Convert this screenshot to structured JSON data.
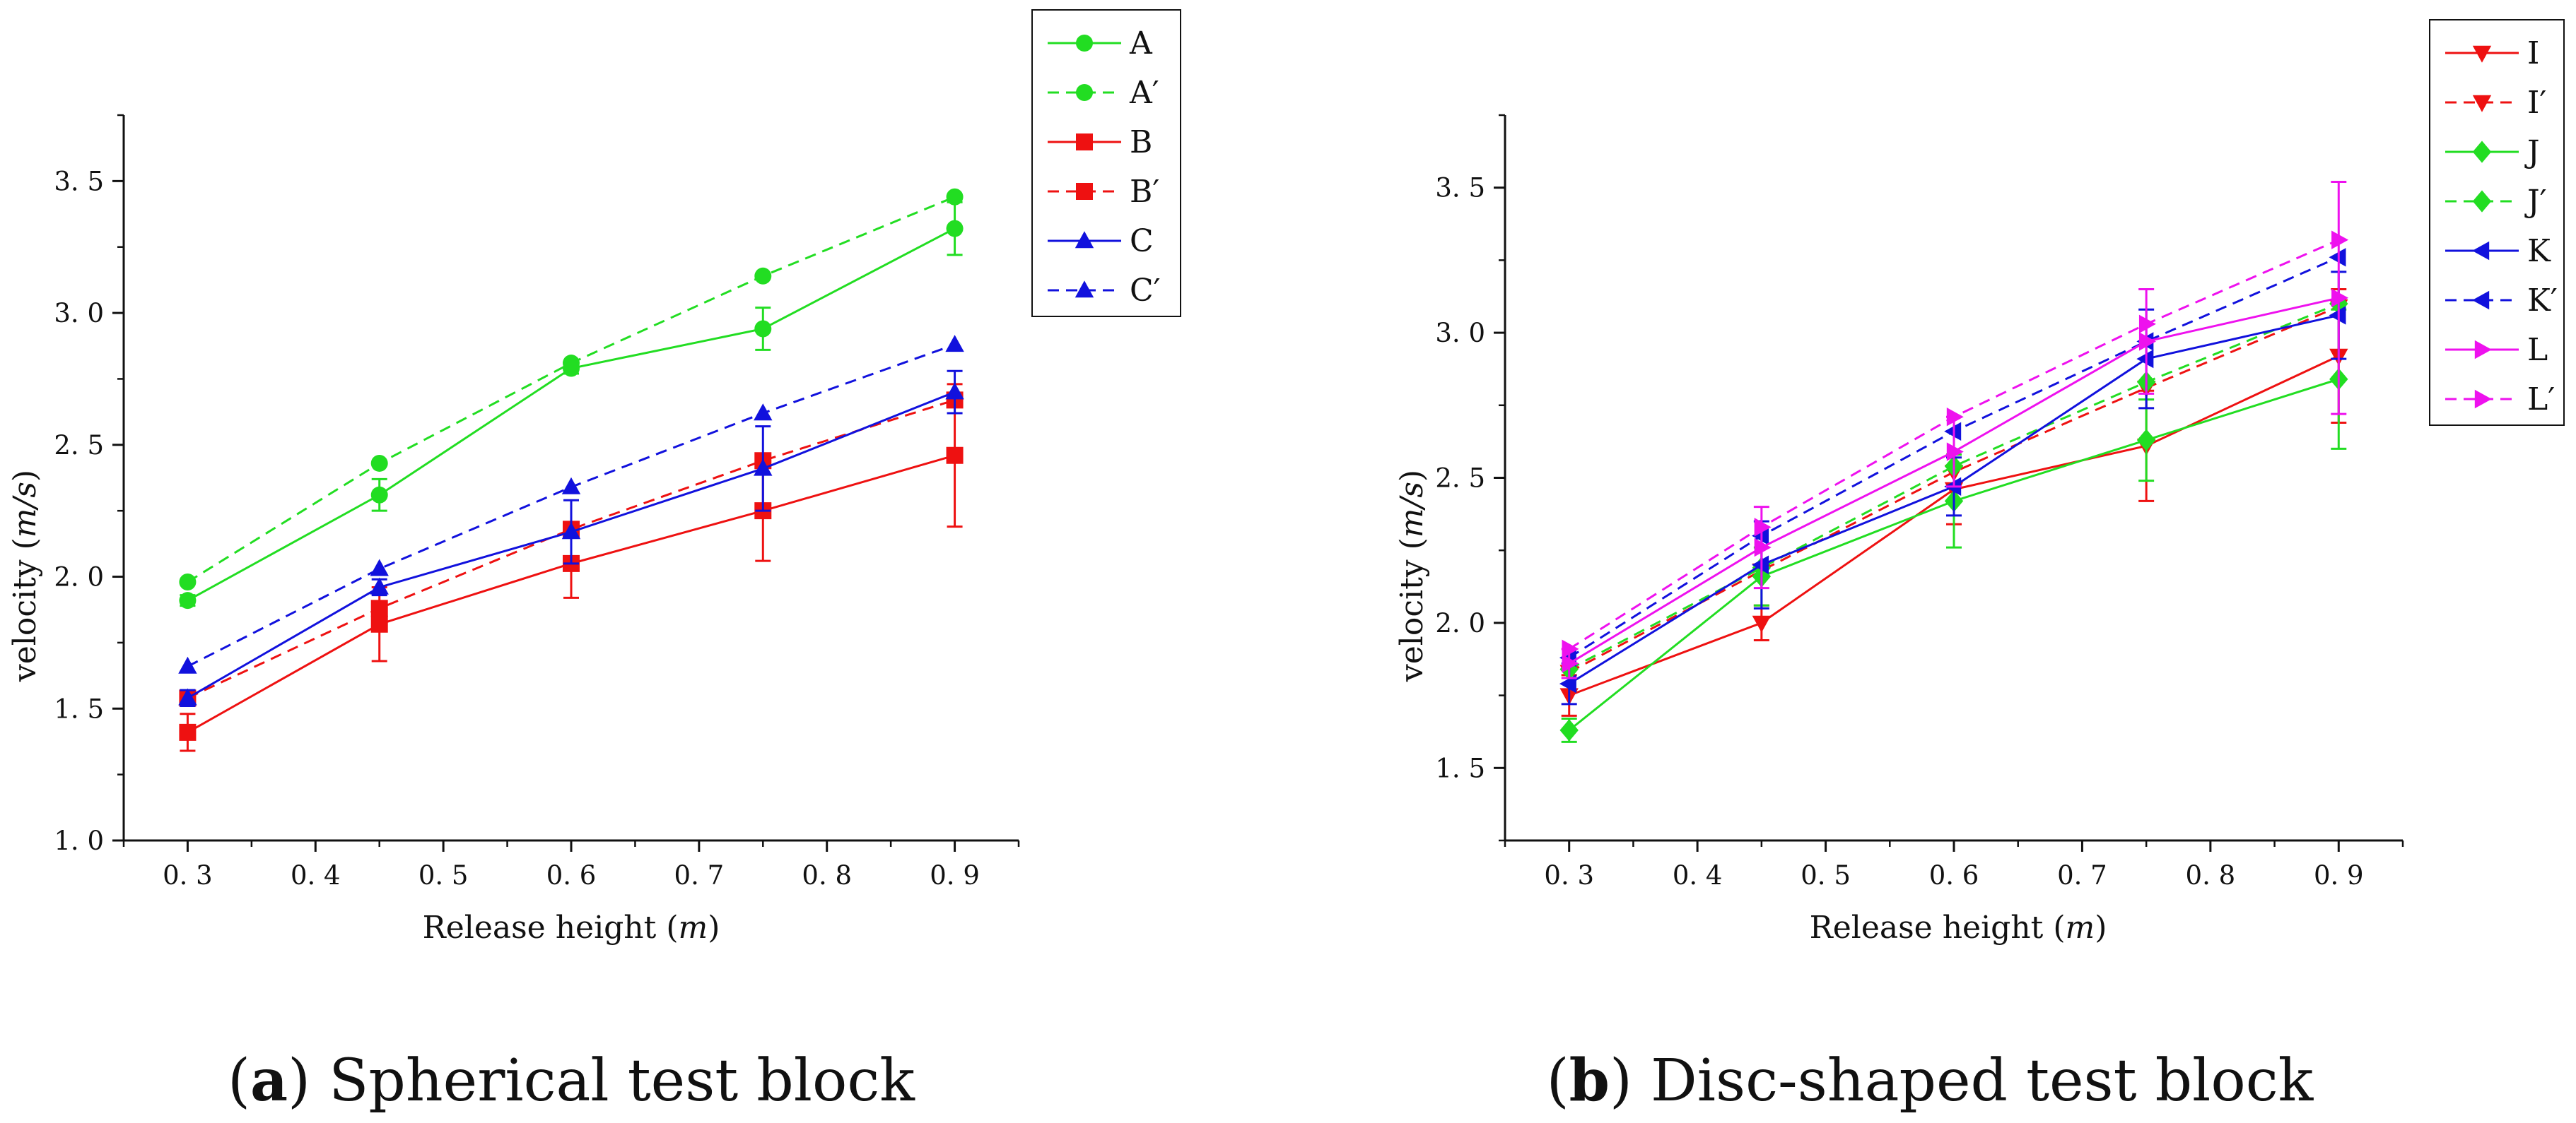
{
  "chart_data": [
    {
      "type": "line",
      "caption_label": "a",
      "caption_text": "Spherical test block",
      "xlabel": "Release height",
      "xunit": "m",
      "ylabel": "velocity",
      "yunit": "m/s",
      "xlim": [
        0.25,
        0.95
      ],
      "ylim": [
        1.0,
        3.75
      ],
      "xticks": [
        0.3,
        0.4,
        0.5,
        0.6,
        0.7,
        0.8,
        0.9
      ],
      "xtick_labels": [
        "0. 3",
        "0. 4",
        "0. 5",
        "0. 6",
        "0. 7",
        "0. 8",
        "0. 9"
      ],
      "yticks": [
        1.0,
        1.5,
        2.0,
        2.5,
        3.0,
        3.5
      ],
      "ytick_labels": [
        "1. 0",
        "1. 5",
        "2. 0",
        "2. 5",
        "3. 0",
        "3. 5"
      ],
      "x": [
        0.3,
        0.45,
        0.6,
        0.75,
        0.9
      ],
      "series": [
        {
          "name": "A",
          "color": "#22dd22",
          "marker": "circle",
          "dash": false,
          "values": [
            1.91,
            2.31,
            2.79,
            2.94,
            3.32
          ],
          "errors": [
            0.02,
            0.06,
            0.02,
            0.08,
            0.1
          ]
        },
        {
          "name": "A′",
          "color": "#22dd22",
          "marker": "circle",
          "dash": true,
          "values": [
            1.98,
            2.43,
            2.81,
            3.14,
            3.44
          ],
          "errors": null
        },
        {
          "name": "B",
          "color": "#ee1111",
          "marker": "square",
          "dash": false,
          "values": [
            1.41,
            1.82,
            2.05,
            2.25,
            2.46
          ],
          "errors": [
            0.07,
            0.14,
            0.13,
            0.19,
            0.27
          ]
        },
        {
          "name": "B′",
          "color": "#ee1111",
          "marker": "square",
          "dash": true,
          "values": [
            1.54,
            1.88,
            2.18,
            2.44,
            2.67
          ],
          "errors": null
        },
        {
          "name": "C",
          "color": "#1111dd",
          "marker": "triangle-up",
          "dash": false,
          "values": [
            1.54,
            1.96,
            2.17,
            2.41,
            2.7
          ],
          "errors": [
            0.03,
            0.03,
            0.12,
            0.16,
            0.08
          ]
        },
        {
          "name": "C′",
          "color": "#1111dd",
          "marker": "triangle-up",
          "dash": true,
          "values": [
            1.66,
            2.03,
            2.34,
            2.62,
            2.88
          ],
          "errors": null
        }
      ]
    },
    {
      "type": "line",
      "caption_label": "b",
      "caption_text": "Disc-shaped test block",
      "xlabel": "Release height",
      "xunit": "m",
      "ylabel": "velocity",
      "yunit": "m/s",
      "xlim": [
        0.25,
        0.95
      ],
      "ylim": [
        1.25,
        3.75
      ],
      "xticks": [
        0.3,
        0.4,
        0.5,
        0.6,
        0.7,
        0.8,
        0.9
      ],
      "xtick_labels": [
        "0. 3",
        "0. 4",
        "0. 5",
        "0. 6",
        "0. 7",
        "0. 8",
        "0. 9"
      ],
      "yticks": [
        1.5,
        2.0,
        2.5,
        3.0,
        3.5
      ],
      "ytick_labels": [
        "1. 5",
        "2. 0",
        "2. 5",
        "3. 0",
        "3. 5"
      ],
      "x": [
        0.3,
        0.45,
        0.6,
        0.75,
        0.9
      ],
      "series": [
        {
          "name": "I",
          "color": "#ee1111",
          "marker": "triangle-down",
          "dash": false,
          "values": [
            1.75,
            2.0,
            2.46,
            2.61,
            2.92
          ],
          "errors": [
            0.07,
            0.06,
            0.12,
            0.19,
            0.23
          ]
        },
        {
          "name": "I′",
          "color": "#ee1111",
          "marker": "triangle-down",
          "dash": true,
          "values": [
            1.83,
            2.18,
            2.52,
            2.81,
            3.09
          ],
          "errors": null
        },
        {
          "name": "J",
          "color": "#22dd22",
          "marker": "diamond",
          "dash": false,
          "values": [
            1.63,
            2.16,
            2.42,
            2.63,
            2.84
          ],
          "errors": [
            0.04,
            0.1,
            0.16,
            0.14,
            0.24
          ]
        },
        {
          "name": "J′",
          "color": "#22dd22",
          "marker": "diamond",
          "dash": true,
          "values": [
            1.84,
            2.19,
            2.54,
            2.83,
            3.1
          ],
          "errors": null
        },
        {
          "name": "K",
          "color": "#1111dd",
          "marker": "triangle-left",
          "dash": false,
          "values": [
            1.79,
            2.2,
            2.47,
            2.91,
            3.06
          ],
          "errors": [
            0.07,
            0.15,
            0.1,
            0.17,
            0.15
          ]
        },
        {
          "name": "K′",
          "color": "#1111dd",
          "marker": "triangle-left",
          "dash": true,
          "values": [
            1.88,
            2.3,
            2.66,
            2.97,
            3.26
          ],
          "errors": null
        },
        {
          "name": "L",
          "color": "#ee11ee",
          "marker": "triangle-right",
          "dash": false,
          "values": [
            1.86,
            2.26,
            2.59,
            2.97,
            3.12
          ],
          "errors": [
            0.05,
            0.14,
            0.12,
            0.18,
            0.4
          ]
        },
        {
          "name": "L′",
          "color": "#ee11ee",
          "marker": "triangle-right",
          "dash": true,
          "values": [
            1.91,
            2.33,
            2.71,
            3.03,
            3.32
          ],
          "errors": null
        }
      ]
    }
  ]
}
